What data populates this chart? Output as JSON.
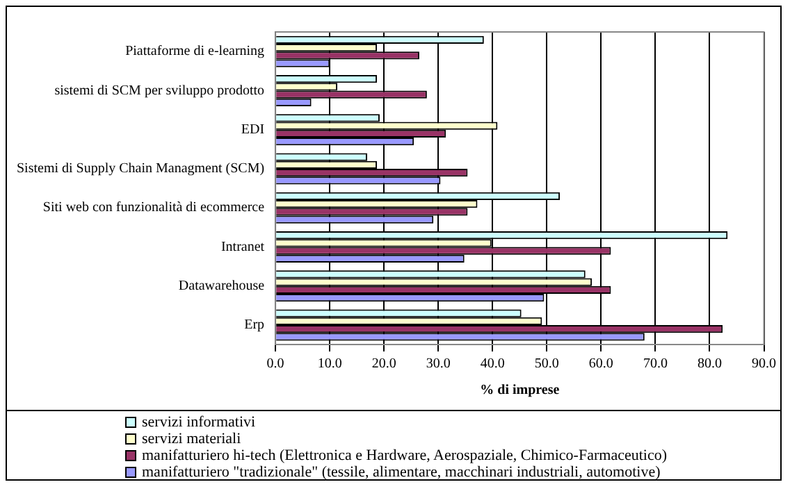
{
  "chart_data": {
    "type": "bar",
    "orientation": "horizontal",
    "xlabel": "% di imprese",
    "categories": [
      "Piattaforme di e-learning",
      "sistemi di SCM per sviluppo prodotto",
      "EDI",
      "Sistemi di Supply Chain Managment (SCM)",
      "Siti web con funzionalità di ecommerce",
      "Intranet",
      "Datawarehouse",
      "Erp"
    ],
    "series": [
      {
        "name": "servizi informativi",
        "color": "#ccffff",
        "values": [
          38.4,
          18.7,
          19.2,
          16.9,
          52.4,
          83.3,
          57.1,
          45.3
        ]
      },
      {
        "name": "servizi materiali",
        "color": "#ffffcc",
        "values": [
          18.7,
          11.4,
          40.9,
          18.7,
          37.2,
          39.8,
          58.3,
          49.1
        ]
      },
      {
        "name": "manifatturiero hi-tech (Elettronica e Hardware, Aerospaziale, Chimico-Farmaceutico)",
        "color": "#993366",
        "values": [
          26.5,
          27.9,
          31.4,
          35.4,
          35.4,
          61.8,
          61.8,
          82.4
        ]
      },
      {
        "name": "manifatturiero \"tradizionale\" (tessile, alimentare, macchinari industriali, automotive)",
        "color": "#9999ff",
        "values": [
          10.0,
          6.6,
          25.5,
          30.4,
          29.1,
          34.8,
          49.5,
          68.0
        ]
      }
    ],
    "xlim": [
      0,
      90
    ],
    "xticks": [
      {
        "value": 0,
        "label": "0.0"
      },
      {
        "value": 10,
        "label": "10.0"
      },
      {
        "value": 20,
        "label": "20.0"
      },
      {
        "value": 30,
        "label": "30.0"
      },
      {
        "value": 40,
        "label": "40.0"
      },
      {
        "value": 50,
        "label": "50.0"
      },
      {
        "value": 60,
        "label": "60.0"
      },
      {
        "value": 70,
        "label": "70.0"
      },
      {
        "value": 80,
        "label": "80.0"
      },
      {
        "value": 90,
        "label": "90.0"
      }
    ],
    "grid": "x",
    "legend": "bottom"
  }
}
